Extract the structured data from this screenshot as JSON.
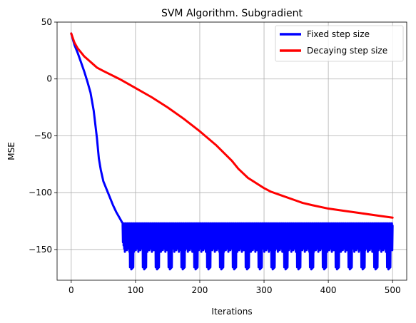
{
  "chart_data": {
    "type": "line",
    "title": "SVM Algorithm. Subgradient",
    "xlabel": "Iterations",
    "ylabel": "MSE",
    "xlim": [
      -22,
      522
    ],
    "ylim": [
      -177,
      50
    ],
    "x_ticks": [
      0,
      100,
      200,
      300,
      400,
      500
    ],
    "y_ticks": [
      50,
      0,
      -50,
      -100,
      -150
    ],
    "grid": true,
    "legend_position": "top-right",
    "series": [
      {
        "name": "Fixed step size",
        "color": "#0000ff",
        "x": [
          0,
          5,
          10,
          15,
          20,
          25,
          30,
          35,
          40,
          43,
          46,
          50,
          55,
          60,
          65,
          70,
          75,
          80,
          85,
          90,
          95,
          100
        ],
        "values": [
          40,
          30,
          23,
          15,
          7,
          -2,
          -12,
          -28,
          -52,
          -70,
          -80,
          -90,
          -97,
          -104,
          -111,
          -117,
          -122,
          -127,
          -128,
          -132,
          -132,
          -134
        ],
        "oscillation": {
          "from_x": 80,
          "to_x": 500,
          "step": 0.5,
          "upper_bound": -127,
          "typical_lower": -152,
          "period": 20,
          "deep_lower": -165
        }
      },
      {
        "name": "Decaying step size",
        "color": "#ff0000",
        "x": [
          0,
          5,
          10,
          20,
          30,
          40,
          50,
          75,
          100,
          125,
          150,
          175,
          200,
          225,
          250,
          260,
          275,
          300,
          310,
          325,
          350,
          360,
          375,
          400,
          425,
          450,
          475,
          500
        ],
        "values": [
          40,
          32,
          27,
          20,
          15,
          10,
          7,
          0,
          -8,
          -16,
          -25,
          -35,
          -46,
          -58,
          -72,
          -79,
          -87,
          -96,
          -99,
          -102,
          -107,
          -109,
          -111,
          -114,
          -116,
          -118,
          -120,
          -122
        ]
      }
    ]
  }
}
